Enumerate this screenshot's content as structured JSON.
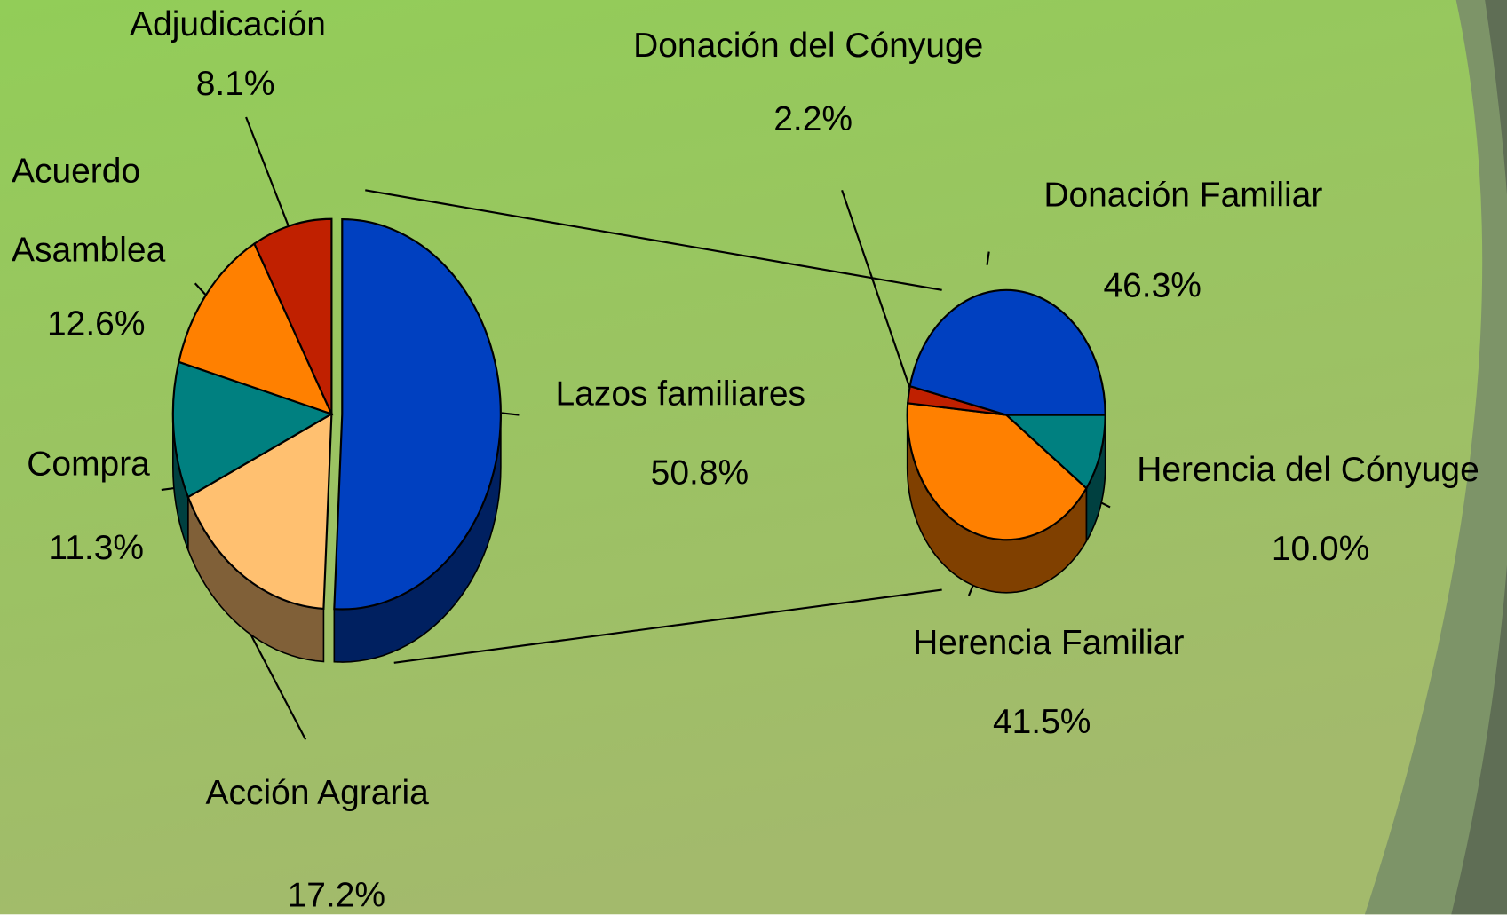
{
  "chart_data": [
    {
      "type": "pie",
      "categories": [
        "Lazos familiares",
        "Acción Agraria",
        "Compra",
        "Acuerdo Asamblea",
        "Adjudicación"
      ],
      "values": [
        50.8,
        17.2,
        11.3,
        12.6,
        8.1
      ],
      "value_labels": [
        "50.8%",
        "17.2%",
        "11.3%",
        "12.6%",
        "8.1%"
      ],
      "colors": [
        "#0040c0",
        "#ffc070",
        "#008080",
        "#ff8000",
        "#c02000"
      ]
    },
    {
      "type": "pie",
      "categories": [
        "Herencia del Cónyuge",
        "Herencia Familiar",
        "Donación del Cónyuge",
        "Donación Familiar"
      ],
      "values": [
        10.0,
        41.5,
        2.2,
        46.3
      ],
      "value_labels": [
        "10.0%",
        "41.5%",
        "2.2%",
        "46.3%"
      ],
      "colors": [
        "#008080",
        "#ff8000",
        "#c02000",
        "#0040c0"
      ]
    }
  ]
}
